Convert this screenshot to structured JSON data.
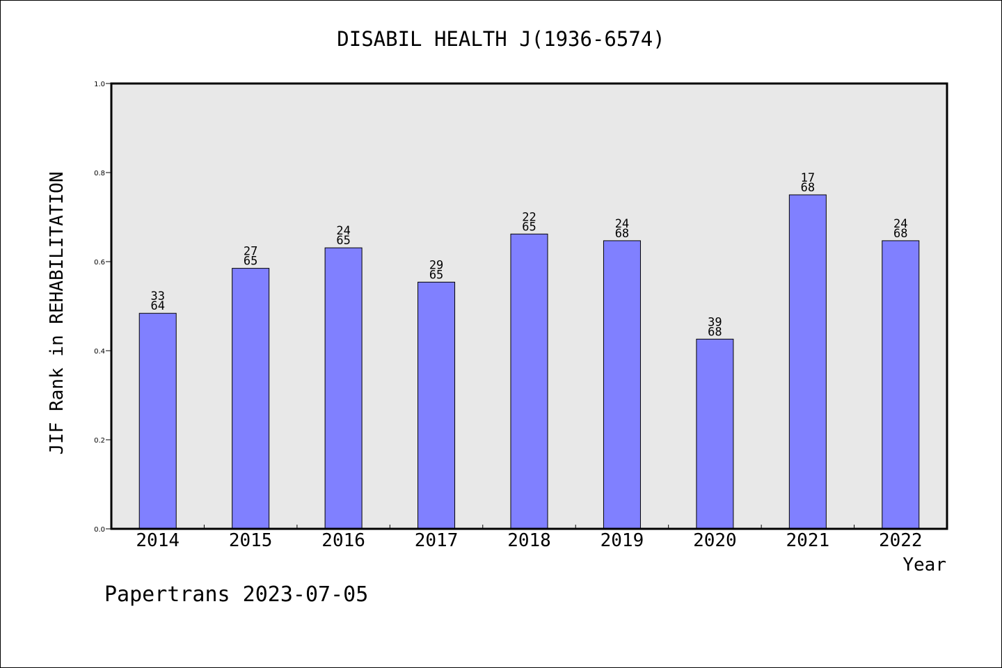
{
  "chart_data": {
    "type": "bar",
    "title": "DISABIL HEALTH J(1936-6574)",
    "xlabel": "Year",
    "ylabel": "JIF Rank in REHABILITATION",
    "ylim": [
      0,
      1.0
    ],
    "yticks": [
      "0.0",
      "0.2",
      "0.4",
      "0.6",
      "0.8",
      "1.0"
    ],
    "categories": [
      "2014",
      "2015",
      "2016",
      "2017",
      "2018",
      "2019",
      "2020",
      "2021",
      "2022"
    ],
    "values": [
      0.484,
      0.585,
      0.631,
      0.554,
      0.662,
      0.647,
      0.426,
      0.75,
      0.647
    ],
    "ranks": [
      "33",
      "27",
      "24",
      "29",
      "22",
      "24",
      "39",
      "17",
      "24"
    ],
    "totals": [
      "64",
      "65",
      "65",
      "65",
      "65",
      "68",
      "68",
      "68",
      "68"
    ],
    "grid": false,
    "legend": "none",
    "colors": {
      "bar_fill": "#8080ff",
      "bar_stroke": "#000000",
      "plot_background": "#e8e8e8",
      "axis": "#000000"
    }
  },
  "footer": {
    "text": "Papertrans 2023-07-05"
  }
}
